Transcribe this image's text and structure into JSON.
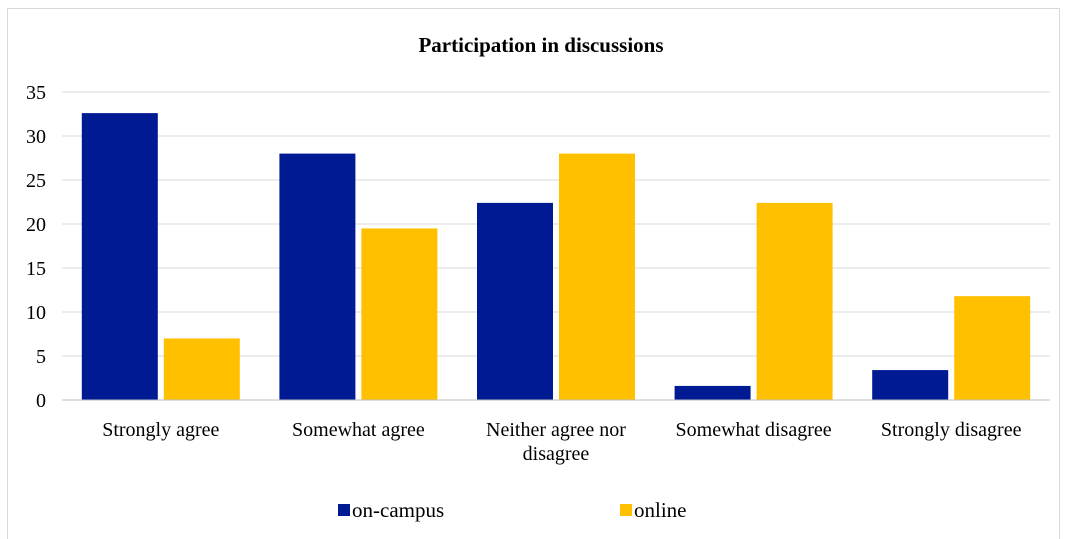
{
  "chart_data": {
    "type": "bar",
    "title": "Participation in discussions",
    "categories": [
      [
        "Strongly agree"
      ],
      [
        "Somewhat agree"
      ],
      [
        "Neither agree nor",
        "disagree"
      ],
      [
        "Somewhat disagree"
      ],
      [
        "Strongly disagree"
      ]
    ],
    "series": [
      {
        "name": "on-campus",
        "color": "#001A94",
        "values": [
          32.6,
          28.0,
          22.4,
          1.6,
          3.4
        ]
      },
      {
        "name": "online",
        "color": "#FFC000",
        "values": [
          7.0,
          19.5,
          28.0,
          22.4,
          11.8
        ]
      }
    ],
    "yticks": [
      "0",
      "5",
      "10",
      "15",
      "20",
      "25",
      "30",
      "35"
    ],
    "ylim": [
      0,
      35
    ],
    "grid": true,
    "legend_position": "bottom",
    "xlabel": "",
    "ylabel": ""
  }
}
